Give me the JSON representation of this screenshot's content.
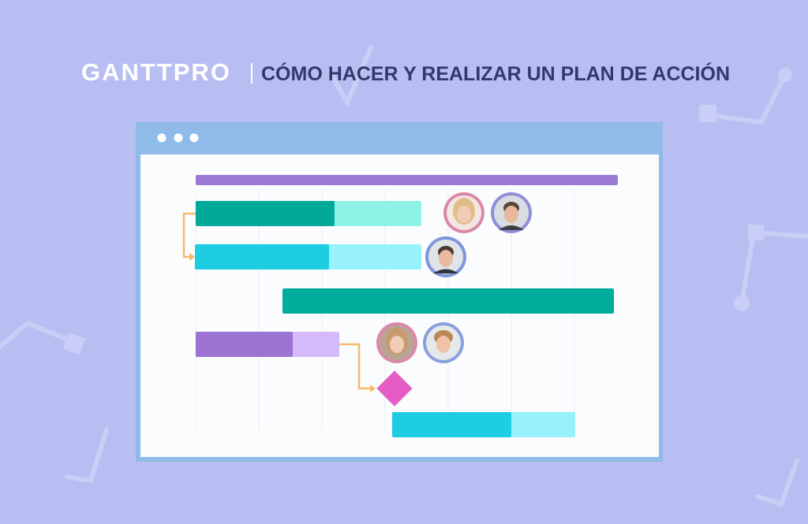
{
  "header": {
    "logo": "GANTTPRO",
    "title": "CÓMO HACER Y REALIZAR UN PLAN DE ACCIÓN"
  }
}
